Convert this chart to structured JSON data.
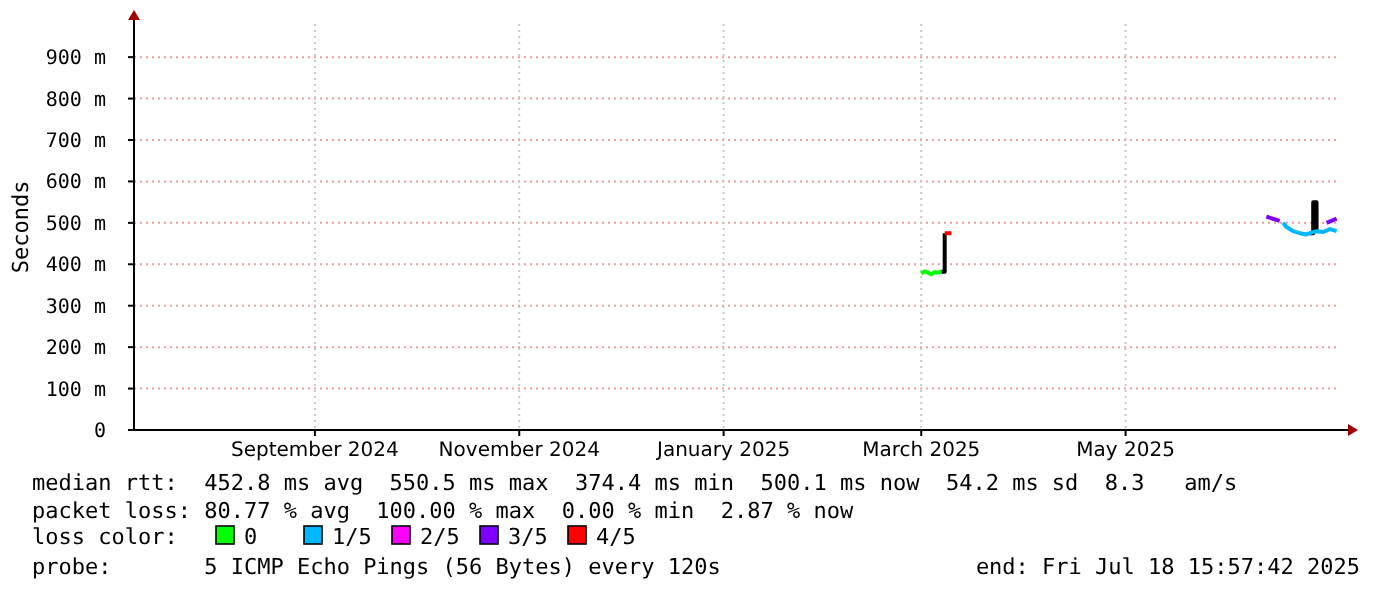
{
  "chart_data": {
    "type": "line",
    "ylabel": "Seconds",
    "legend_title": "loss color:",
    "legend": "bottom",
    "grid": true,
    "marker": "none",
    "line_style": "solid",
    "xlim": [
      "2024-07-23",
      "2025-07-18"
    ],
    "xticks": [
      {
        "value": "2024-09-15",
        "label": "September 2024"
      },
      {
        "value": "2024-11-15",
        "label": "November 2024"
      },
      {
        "value": "2025-01-15",
        "label": "January 2025"
      },
      {
        "value": "2025-03-15",
        "label": "March 2025"
      },
      {
        "value": "2025-05-15",
        "label": "May 2025"
      }
    ],
    "ylim": [
      0,
      980
    ],
    "yticks": [
      0,
      {
        "value": 100,
        "label": "100 m"
      },
      {
        "value": 200,
        "label": "200 m"
      },
      {
        "value": 300,
        "label": "300 m"
      },
      {
        "value": 400,
        "label": "400 m"
      },
      {
        "value": 500,
        "label": "500 m"
      },
      {
        "value": 600,
        "label": "600 m"
      },
      {
        "value": 700,
        "label": "700 m"
      },
      {
        "value": 800,
        "label": "800 m"
      },
      {
        "value": 900,
        "label": "900 m"
      }
    ],
    "series": [
      {
        "color": "#000000",
        "type": "step",
        "x": [
          "2025-03-21",
          "2025-03-22",
          "2025-03-22"
        ],
        "values": [
          382,
          390,
          475
        ]
      },
      {
        "color": "#000000",
        "type": "step",
        "x": [
          "2025-07-09",
          "2025-07-10",
          "2025-07-10",
          "2025-07-11"
        ],
        "values": [
          475,
          475,
          550,
          480
        ]
      },
      {
        "name": "0",
        "color": "#00ff00",
        "x": [
          "2025-03-15",
          "2025-03-16",
          "2025-03-17",
          "2025-03-18",
          "2025-03-19",
          "2025-03-20",
          "2025-03-21"
        ],
        "values": [
          378,
          383,
          380,
          376,
          381,
          380,
          382
        ]
      },
      {
        "name": "1/5",
        "color": "#00b8ff",
        "x": [
          "2025-07-01",
          "2025-07-02",
          "2025-07-03",
          "2025-07-04",
          "2025-07-06",
          "2025-07-08",
          "2025-07-09",
          "2025-07-11",
          "2025-07-13",
          "2025-07-15",
          "2025-07-17"
        ],
        "values": [
          500,
          490,
          485,
          480,
          475,
          472,
          475,
          480,
          478,
          485,
          480
        ]
      },
      {
        "name": "2/5",
        "color": "#ff00ff"
      },
      {
        "name": "3/5",
        "color": "#7e00ff",
        "x": [
          "2025-06-26",
          "2025-06-30",
          "2025-07-05",
          "2025-07-14",
          "2025-07-17"
        ],
        "values": [
          515,
          505,
          null,
          500,
          510
        ]
      },
      {
        "name": "4/5",
        "color": "#ff0000",
        "x": [
          "2025-03-22",
          "2025-03-24"
        ],
        "values": [
          475,
          475
        ]
      }
    ],
    "annotations": [
      "median rtt:  452.8 ms avg  550.5 ms max  374.4 ms min  500.1 ms now  54.2 ms sd  8.3   am/s",
      "packet loss: 80.77 % avg  100.00 % max  0.00 % min  2.87 % now",
      "probe:       5 ICMP Echo Pings (56 Bytes) every 120s",
      "end: Fri Jul 18 15:57:42 2025"
    ]
  }
}
